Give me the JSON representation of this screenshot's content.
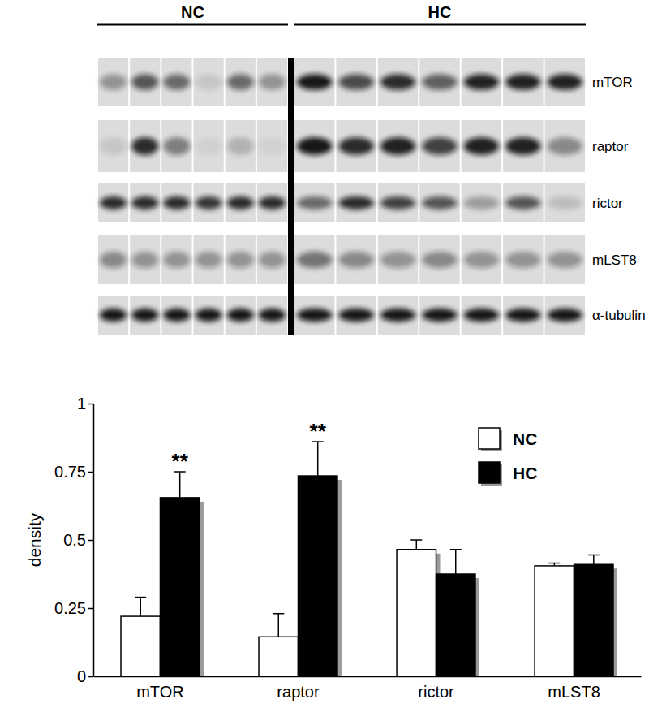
{
  "blot": {
    "groups": [
      "NC",
      "HC"
    ],
    "rows": [
      {
        "label": "mTOR",
        "intensities": [
          [
            0.35,
            0.65,
            0.55,
            0.1,
            0.55,
            0.35
          ],
          [
            0.95,
            0.7,
            0.85,
            0.6,
            0.9,
            0.9,
            0.9
          ]
        ]
      },
      {
        "label": "raptor",
        "intensities": [
          [
            0.1,
            0.85,
            0.45,
            0.05,
            0.2,
            0.05
          ],
          [
            0.95,
            0.85,
            0.9,
            0.75,
            0.9,
            0.9,
            0.4
          ]
        ]
      },
      {
        "label": "rictor",
        "intensities": [
          [
            0.85,
            0.85,
            0.85,
            0.8,
            0.85,
            0.85
          ],
          [
            0.55,
            0.85,
            0.75,
            0.65,
            0.3,
            0.65,
            0.15
          ]
        ]
      },
      {
        "label": "mLST8",
        "intensities": [
          [
            0.4,
            0.35,
            0.35,
            0.35,
            0.35,
            0.35
          ],
          [
            0.5,
            0.4,
            0.35,
            0.4,
            0.35,
            0.35,
            0.35
          ]
        ]
      },
      {
        "label": "α-tubulin",
        "intensities": [
          [
            0.95,
            0.95,
            0.95,
            0.95,
            0.95,
            0.95
          ],
          [
            0.95,
            0.95,
            0.95,
            0.95,
            0.95,
            0.95,
            0.95
          ]
        ]
      }
    ]
  },
  "chart_data": {
    "type": "bar",
    "y_label": "density",
    "categories": [
      "mTOR",
      "raptor",
      "rictor",
      "mLST8"
    ],
    "series": [
      {
        "name": "NC",
        "color": "#ffffff",
        "values": [
          0.22,
          0.145,
          0.465,
          0.405
        ],
        "errors": [
          0.07,
          0.085,
          0.035,
          0.01
        ]
      },
      {
        "name": "HC",
        "color": "#000000",
        "values": [
          0.655,
          0.735,
          0.375,
          0.41
        ],
        "errors": [
          0.095,
          0.125,
          0.09,
          0.035
        ]
      }
    ],
    "ylim": [
      0,
      1
    ],
    "yticks": [
      0,
      0.25,
      0.5,
      0.75,
      1
    ],
    "legend": "top-right",
    "annotations": [
      {
        "text": "**",
        "category": "mTOR",
        "series": "HC"
      },
      {
        "text": "**",
        "category": "raptor",
        "series": "HC"
      }
    ]
  }
}
